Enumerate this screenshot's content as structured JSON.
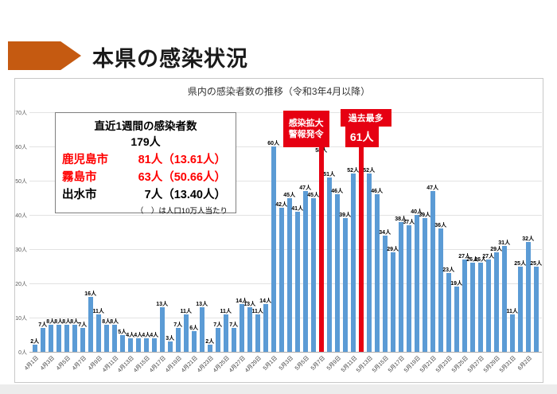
{
  "slide": {
    "title": "本県の感染状況"
  },
  "colors": {
    "accent_orange": "#C55A11",
    "bar_blue": "#5B9BD5",
    "alert_red": "#E60012",
    "info_red_text": "#FF0000"
  },
  "chart": {
    "title": "県内の感染者数の推移（令和3年4月以降）",
    "info_box": {
      "title": "直近1週間の感染者数",
      "total": "179人",
      "rows": [
        {
          "name": "鹿児島市",
          "value": "81人（13.61人）",
          "color": "#FF0000"
        },
        {
          "name": "霧島市",
          "value": "63人（50.66人）",
          "color": "#FF0000"
        },
        {
          "name": "出水市",
          "value": "7人（13.40人）",
          "color": "#000000"
        }
      ],
      "note": "（　）は人口10万人当たり"
    },
    "annotations": {
      "alert": {
        "line1": "感染拡大",
        "line2": "警報発令",
        "date": "5月7日"
      },
      "record": {
        "label": "過去最多",
        "value": "61人",
        "date": "5月12日"
      }
    }
  },
  "chart_data": {
    "type": "bar",
    "title": "県内の感染者数の推移（令和3年4月以降）",
    "unit": "人",
    "ylim": [
      0,
      70
    ],
    "yticks": [
      "0人",
      "10人",
      "20人",
      "30人",
      "40人",
      "50人",
      "60人",
      "70人"
    ],
    "grid": true,
    "categories": [
      "4月1日",
      "4月2日",
      "4月3日",
      "4月4日",
      "4月5日",
      "4月6日",
      "4月7日",
      "4月8日",
      "4月9日",
      "4月10日",
      "4月11日",
      "4月12日",
      "4月13日",
      "4月14日",
      "4月15日",
      "4月16日",
      "4月17日",
      "4月18日",
      "4月19日",
      "4月20日",
      "4月21日",
      "4月22日",
      "4月23日",
      "4月24日",
      "4月25日",
      "4月26日",
      "4月27日",
      "4月28日",
      "4月29日",
      "4月30日",
      "5月1日",
      "5月2日",
      "5月3日",
      "5月4日",
      "5月5日",
      "5月6日",
      "5月7日",
      "5月8日",
      "5月9日",
      "5月10日",
      "5月11日",
      "5月12日",
      "5月13日",
      "5月14日",
      "5月15日",
      "5月16日",
      "5月17日",
      "5月18日",
      "5月19日",
      "5月20日",
      "5月21日",
      "5月22日",
      "5月23日",
      "5月24日",
      "5月25日",
      "5月26日",
      "5月27日",
      "5月28日",
      "5月29日",
      "5月30日",
      "5月31日",
      "6月1日",
      "6月2日",
      "6月3日"
    ],
    "values": [
      2,
      7,
      8,
      8,
      8,
      8,
      7,
      16,
      11,
      8,
      8,
      5,
      4,
      4,
      4,
      4,
      13,
      3,
      7,
      11,
      6,
      13,
      2,
      7,
      11,
      7,
      14,
      13,
      11,
      14,
      60,
      42,
      45,
      41,
      47,
      45,
      58,
      51,
      46,
      39,
      52,
      61,
      52,
      46,
      34,
      29,
      38,
      37,
      40,
      39,
      47,
      36,
      23,
      19,
      27,
      26,
      26,
      27,
      29,
      31,
      11,
      25,
      32,
      25
    ],
    "red_dates": [
      "5月7日",
      "5月12日"
    ],
    "xtick_every": 2
  }
}
